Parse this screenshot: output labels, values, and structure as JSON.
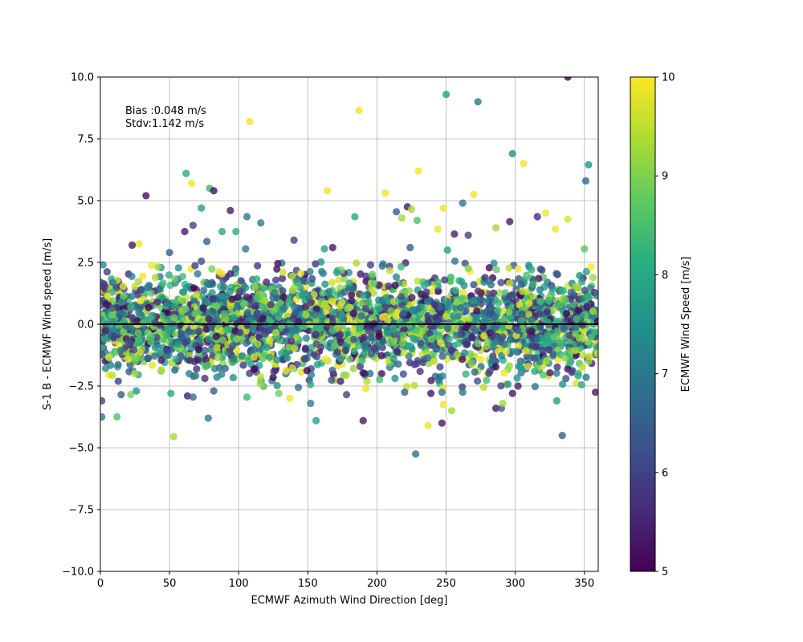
{
  "chart_data": {
    "type": "scatter",
    "title": "",
    "xlabel": "ECMWF Azimuth Wind Direction [deg]",
    "ylabel": "S-1 B - ECMWF Wind speed [m/s]",
    "xlim": [
      0,
      360
    ],
    "ylim": [
      -10,
      10
    ],
    "xticks": [
      0,
      50,
      100,
      150,
      200,
      250,
      300,
      350
    ],
    "yticks": [
      -10.0,
      -7.5,
      -5.0,
      -2.5,
      0.0,
      2.5,
      5.0,
      7.5,
      10.0
    ],
    "xtick_labels": [
      "0",
      "50",
      "100",
      "150",
      "200",
      "250",
      "300",
      "350"
    ],
    "ytick_labels": [
      "−10.0",
      "−7.5",
      "−5.0",
      "−2.5",
      "0.0",
      "2.5",
      "5.0",
      "7.5",
      "10.0"
    ],
    "grid": true,
    "reference_line_y": 0,
    "colormap": "viridis",
    "annotations": [
      "Bias :0.048 m/s",
      "Stdv:1.142 m/s"
    ],
    "colorbar": {
      "label": "ECMWF Wind Speed [m/s]",
      "range": [
        5,
        10
      ],
      "ticks": [
        5,
        6,
        7,
        8,
        9,
        10
      ],
      "tick_labels": [
        "5",
        "6",
        "7",
        "8",
        "9",
        "10"
      ]
    },
    "bulk_distribution": {
      "point_count_approx": 3000,
      "x_range": [
        0,
        360
      ],
      "y_center": 0.048,
      "y_std": 1.142,
      "color_range": [
        5,
        10
      ]
    },
    "points": [
      [
        338,
        10.0,
        5.0
      ],
      [
        250,
        9.3,
        7.8
      ],
      [
        273,
        9.0,
        7.0
      ],
      [
        187,
        8.65,
        9.9
      ],
      [
        108,
        8.2,
        9.9
      ],
      [
        298,
        6.9,
        7.5
      ],
      [
        306,
        6.5,
        9.9
      ],
      [
        230,
        6.2,
        9.9
      ],
      [
        353,
        6.45,
        7.6
      ],
      [
        351,
        5.8,
        6.6
      ],
      [
        62,
        6.1,
        8.0
      ],
      [
        66,
        5.7,
        9.9
      ],
      [
        33,
        5.2,
        5.2
      ],
      [
        79,
        5.5,
        8.4
      ],
      [
        82,
        5.4,
        5.2
      ],
      [
        206,
        5.3,
        9.9
      ],
      [
        164,
        5.4,
        9.9
      ],
      [
        222,
        4.75,
        5.3
      ],
      [
        248,
        4.7,
        9.9
      ],
      [
        262,
        4.9,
        7.0
      ],
      [
        270,
        5.25,
        9.9
      ],
      [
        73,
        4.7,
        7.8
      ],
      [
        94,
        4.6,
        5.3
      ],
      [
        106,
        4.35,
        7.0
      ],
      [
        116,
        4.1,
        7.0
      ],
      [
        184,
        4.35,
        8.0
      ],
      [
        214,
        4.55,
        6.5
      ],
      [
        225,
        4.65,
        9.3
      ],
      [
        322,
        4.5,
        9.9
      ],
      [
        316,
        4.35,
        5.6
      ],
      [
        296,
        4.15,
        5.4
      ],
      [
        338,
        4.25,
        9.7
      ],
      [
        218,
        4.3,
        9.3
      ],
      [
        229,
        4.2,
        8.6
      ],
      [
        61,
        3.75,
        5.3
      ],
      [
        67,
        4.0,
        6.0
      ],
      [
        88,
        3.75,
        8.0
      ],
      [
        98,
        3.75,
        8.1
      ],
      [
        140,
        3.4,
        6.0
      ],
      [
        256,
        3.65,
        5.4
      ],
      [
        244,
        3.85,
        9.9
      ],
      [
        266,
        3.6,
        6.0
      ],
      [
        286,
        3.9,
        9.3
      ],
      [
        329,
        3.85,
        9.9
      ],
      [
        28,
        3.25,
        9.9
      ],
      [
        23,
        3.2,
        5.3
      ],
      [
        50,
        2.9,
        6.5
      ],
      [
        77,
        3.35,
        6.5
      ],
      [
        105,
        3.05,
        7.0
      ],
      [
        162,
        3.05,
        7.8
      ],
      [
        168,
        3.1,
        5.3
      ],
      [
        224,
        3.1,
        6.5
      ],
      [
        251,
        3.0,
        7.8
      ],
      [
        350,
        3.05,
        8.7
      ],
      [
        53,
        -4.55,
        9.3
      ],
      [
        78,
        -3.8,
        7.0
      ],
      [
        156,
        -3.9,
        7.8
      ],
      [
        190,
        -3.9,
        5.3
      ],
      [
        237,
        -4.1,
        9.9
      ],
      [
        247,
        -4.0,
        5.3
      ],
      [
        228,
        -5.25,
        6.8
      ],
      [
        334,
        -4.5,
        6.5
      ],
      [
        12,
        -3.75,
        8.6
      ],
      [
        1,
        -3.75,
        7.0
      ],
      [
        248,
        -3.25,
        9.9
      ],
      [
        254,
        -3.5,
        9.3
      ],
      [
        152,
        -3.2,
        7.2
      ],
      [
        137,
        -3.0,
        9.9
      ],
      [
        286,
        -3.4,
        5.3
      ],
      [
        290,
        -3.4,
        6.4
      ],
      [
        330,
        -3.1,
        7.8
      ],
      [
        1,
        -3.1,
        6.0
      ],
      [
        63,
        -2.9,
        5.4
      ],
      [
        67,
        -2.95,
        6.8
      ],
      [
        106,
        -2.95,
        8.4
      ],
      [
        129,
        -2.8,
        8.9
      ],
      [
        178,
        -2.85,
        6.0
      ],
      [
        192,
        -2.6,
        9.9
      ],
      [
        220,
        -2.75,
        6.5
      ],
      [
        239,
        -2.8,
        5.3
      ],
      [
        247,
        -2.75,
        6.8
      ],
      [
        262,
        -2.75,
        7.0
      ],
      [
        298,
        -2.8,
        5.3
      ],
      [
        302,
        -2.5,
        5.4
      ],
      [
        358,
        -2.75,
        5.3
      ],
      [
        15,
        -2.85,
        6.5
      ],
      [
        22,
        -2.85,
        9.0
      ],
      [
        26,
        -2.7,
        7.6
      ],
      [
        51,
        -2.8,
        8.0
      ],
      [
        82,
        -2.7,
        6.5
      ],
      [
        291,
        -3.2,
        9.3
      ],
      [
        348,
        -2.45,
        8.0
      ]
    ]
  }
}
